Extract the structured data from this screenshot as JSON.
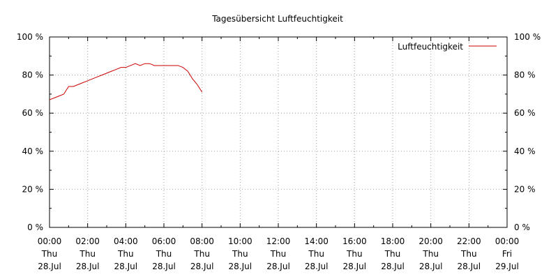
{
  "chart_data": {
    "type": "line",
    "title": "Tagesübersicht Luftfeuchtigkeit",
    "xlabel": "",
    "ylabel": "",
    "ylim": [
      0,
      100
    ],
    "y_unit_suffix": " %",
    "y_ticks": [
      0,
      20,
      40,
      60,
      80,
      100
    ],
    "y_tick_labels": [
      "0 %",
      "20 %",
      "40 %",
      "60 %",
      "80 %",
      "100 %"
    ],
    "y2_tick_labels": [
      "0 %",
      "20 %",
      "40 %",
      "60 %",
      "80 %",
      "100 %"
    ],
    "x_range_hours": [
      0,
      24
    ],
    "x_ticks": [
      {
        "time": "00:00",
        "day": "Thu",
        "date": "28.Jul"
      },
      {
        "time": "02:00",
        "day": "Thu",
        "date": "28.Jul"
      },
      {
        "time": "04:00",
        "day": "Thu",
        "date": "28.Jul"
      },
      {
        "time": "06:00",
        "day": "Thu",
        "date": "28.Jul"
      },
      {
        "time": "08:00",
        "day": "Thu",
        "date": "28.Jul"
      },
      {
        "time": "10:00",
        "day": "Thu",
        "date": "28.Jul"
      },
      {
        "time": "12:00",
        "day": "Thu",
        "date": "28.Jul"
      },
      {
        "time": "14:00",
        "day": "Thu",
        "date": "28.Jul"
      },
      {
        "time": "16:00",
        "day": "Thu",
        "date": "28.Jul"
      },
      {
        "time": "18:00",
        "day": "Thu",
        "date": "28.Jul"
      },
      {
        "time": "20:00",
        "day": "Thu",
        "date": "28.Jul"
      },
      {
        "time": "22:00",
        "day": "Thu",
        "date": "28.Jul"
      },
      {
        "time": "00:00",
        "day": "Fri",
        "date": "29.Jul"
      }
    ],
    "grid": true,
    "legend_position": "top-right",
    "series": [
      {
        "name": "Luftfeuchtigkeit",
        "color": "#cc0000",
        "x": [
          "00:00",
          "00:15",
          "00:30",
          "00:45",
          "01:00",
          "01:15",
          "01:30",
          "01:45",
          "02:00",
          "02:15",
          "02:30",
          "02:45",
          "03:00",
          "03:15",
          "03:30",
          "03:45",
          "04:00",
          "04:15",
          "04:30",
          "04:45",
          "05:00",
          "05:15",
          "05:30",
          "05:45",
          "06:00",
          "06:15",
          "06:30",
          "06:45",
          "07:00",
          "07:15",
          "07:30",
          "07:45",
          "08:00"
        ],
        "y": [
          67,
          68,
          69,
          70,
          74,
          74,
          75,
          76,
          77,
          78,
          79,
          80,
          81,
          82,
          83,
          84,
          84,
          85,
          86,
          85,
          86,
          86,
          85,
          85,
          85,
          85,
          85,
          85,
          84,
          82,
          78,
          75,
          71
        ]
      }
    ]
  }
}
